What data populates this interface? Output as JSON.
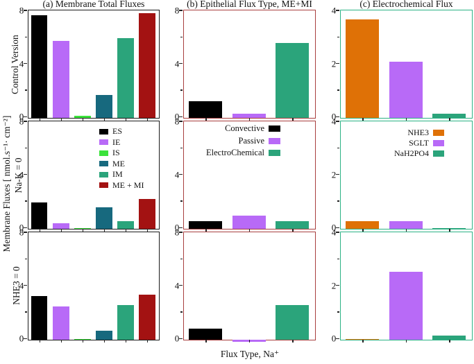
{
  "figure": {
    "ylabel": "Membrane Fluxes [ nmol.s⁻¹· cm⁻²]",
    "xlabel": "Flux Type, Na⁺",
    "background": "#ffffff"
  },
  "rows": [
    {
      "label": "Control Version"
    },
    {
      "label": "Na-K = 0"
    },
    {
      "label": "NHE3 = 0"
    }
  ],
  "columns": [
    {
      "id": "a",
      "title": "(a) Membrane Total Fluxes",
      "border_color": "#1a1a1a",
      "ymax": 8,
      "yticks": [
        0,
        4,
        8
      ],
      "yminorticks": [
        2,
        6
      ],
      "series": [
        {
          "name": "ES",
          "color": "#000000"
        },
        {
          "name": "IE",
          "color": "#b86af7"
        },
        {
          "name": "IS",
          "color": "#3be23b"
        },
        {
          "name": "ME",
          "color": "#17697e"
        },
        {
          "name": "IM",
          "color": "#2ba47b"
        },
        {
          "name": "ME + MI",
          "color": "#a31212"
        }
      ]
    },
    {
      "id": "b",
      "title": "(b) Epithelial Flux Type, ME+MI",
      "border_color": "#a83e3e",
      "ymax": 8,
      "yticks": [
        0,
        4,
        8
      ],
      "yminorticks": [
        2,
        6
      ],
      "series": [
        {
          "name": "Convective",
          "color": "#000000"
        },
        {
          "name": "Passive",
          "color": "#b86af7"
        },
        {
          "name": "ElectroChemical",
          "color": "#2ba47b"
        }
      ]
    },
    {
      "id": "c",
      "title": "(c) Electrochemical Flux",
      "border_color": "#2bb284",
      "ymax": 4,
      "yticks": [
        0,
        2,
        4
      ],
      "yminorticks": [
        1,
        3
      ],
      "series": [
        {
          "name": "NHE3",
          "color": "#df7106"
        },
        {
          "name": "SGLT",
          "color": "#b86af7"
        },
        {
          "name": "NaH2PO4",
          "color": "#2ba47b"
        }
      ]
    }
  ],
  "chart_data": [
    {
      "type": "bar",
      "panel": "a",
      "row": "Control Version",
      "title": "(a) Membrane Total Fluxes",
      "categories": [
        "ES",
        "IE",
        "IS",
        "ME",
        "IM",
        "ME + MI"
      ],
      "values": [
        7.7,
        5.8,
        0.15,
        1.7,
        6.0,
        7.9
      ],
      "ylim": [
        0,
        8
      ],
      "yticks": [
        0,
        4,
        8
      ]
    },
    {
      "type": "bar",
      "panel": "b",
      "row": "Control Version",
      "title": "(b) Epithelial Flux Type, ME+MI",
      "categories": [
        "Convective",
        "Passive",
        "ElectroChemical"
      ],
      "values": [
        1.25,
        0.3,
        5.65
      ],
      "ylim": [
        0,
        8
      ],
      "yticks": [
        0,
        4,
        8
      ]
    },
    {
      "type": "bar",
      "panel": "c",
      "row": "Control Version",
      "title": "(c) Electrochemical Flux",
      "categories": [
        "NHE3",
        "SGLT",
        "NaH2PO4"
      ],
      "values": [
        3.7,
        2.1,
        0.15
      ],
      "ylim": [
        0,
        4
      ],
      "yticks": [
        0,
        2,
        4
      ]
    },
    {
      "type": "bar",
      "panel": "a",
      "row": "Na-K = 0",
      "title": "(a) Membrane Total Fluxes",
      "categories": [
        "ES",
        "IE",
        "IS",
        "ME",
        "IM",
        "ME + MI"
      ],
      "values": [
        2.0,
        0.4,
        0.05,
        1.6,
        0.6,
        2.25
      ],
      "ylim": [
        0,
        8
      ],
      "yticks": [
        0,
        4,
        8
      ]
    },
    {
      "type": "bar",
      "panel": "b",
      "row": "Na-K = 0",
      "title": "(b) Epithelial Flux Type, ME+MI",
      "categories": [
        "Convective",
        "Passive",
        "ElectroChemical"
      ],
      "values": [
        0.55,
        1.0,
        0.6
      ],
      "ylim": [
        0,
        8
      ],
      "yticks": [
        0,
        4,
        8
      ]
    },
    {
      "type": "bar",
      "panel": "c",
      "row": "Na-K = 0",
      "title": "(c) Electrochemical Flux",
      "categories": [
        "NHE3",
        "SGLT",
        "NaH2PO4"
      ],
      "values": [
        0.3,
        0.3,
        0.03
      ],
      "ylim": [
        0,
        4
      ],
      "yticks": [
        0,
        2,
        4
      ]
    },
    {
      "type": "bar",
      "panel": "a",
      "row": "NHE3 = 0",
      "title": "(a) Membrane Total Fluxes",
      "categories": [
        "ES",
        "IE",
        "IS",
        "ME",
        "IM",
        "ME + MI"
      ],
      "values": [
        3.3,
        2.5,
        0.07,
        0.7,
        2.6,
        3.4
      ],
      "ylim": [
        0,
        8
      ],
      "yticks": [
        0,
        4,
        8
      ]
    },
    {
      "type": "bar",
      "panel": "b",
      "row": "NHE3 = 0",
      "title": "(b) Epithelial Flux Type, ME+MI",
      "categories": [
        "Convective",
        "Passive",
        "ElectroChemical"
      ],
      "values": [
        0.85,
        -0.15,
        2.6
      ],
      "ylim": [
        0,
        8
      ],
      "yticks": [
        0,
        4,
        8
      ]
    },
    {
      "type": "bar",
      "panel": "c",
      "row": "NHE3 = 0",
      "title": "(c) Electrochemical Flux",
      "categories": [
        "NHE3",
        "SGLT",
        "NaH2PO4"
      ],
      "values": [
        0.02,
        2.55,
        0.15
      ],
      "ylim": [
        0,
        4
      ],
      "yticks": [
        0,
        2,
        4
      ]
    }
  ]
}
